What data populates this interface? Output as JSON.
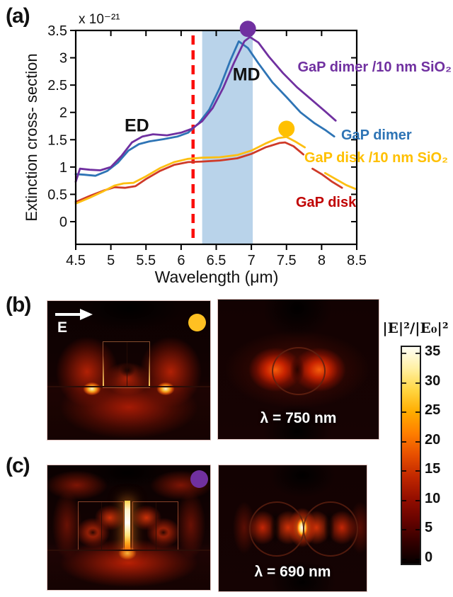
{
  "figure": {
    "panel_a_label": "(a)",
    "panel_b_label": "(b)",
    "panel_c_label": "(c)"
  },
  "chart_data": {
    "type": "line",
    "title": "",
    "xlabel": "Wavelength (μm)",
    "ylabel": "Extinction cross- section",
    "exponent_label": "x 10⁻²¹",
    "xlim": [
      4.5,
      8.5
    ],
    "ylim": [
      -0.42,
      3.5
    ],
    "xticks": [
      "4.5",
      "5",
      "5.5",
      "6",
      "6.5",
      "7",
      "7.5",
      "8",
      "8.5"
    ],
    "yticks": [
      "0",
      "0.5",
      "1",
      "1.5",
      "2",
      "2.5",
      "3",
      "3.5"
    ],
    "grid": false,
    "band": {
      "x0": 6.3,
      "x1": 7.02,
      "color": "#b9d3ea"
    },
    "vline": {
      "x": 6.17,
      "color": "#fb0f0c",
      "style": "dashed"
    },
    "annotations": [
      {
        "text": "ED",
        "x": 5.37,
        "y": 1.77
      },
      {
        "text": "MD",
        "x": 6.93,
        "y": 2.7
      }
    ],
    "markers": [
      {
        "x": 6.95,
        "y": 3.53,
        "color": "#7030a0"
      },
      {
        "x": 7.5,
        "y": 1.7,
        "color": "#ffc000"
      }
    ],
    "series": [
      {
        "name": "GaP dimer /10 nm SiO₂",
        "color": "#7030a0",
        "label_color": "#7030a0",
        "segments": [
          [
            [
              4.5,
              0.73
            ],
            [
              4.56,
              0.97
            ],
            [
              4.7,
              0.95
            ],
            [
              4.85,
              0.94
            ],
            [
              5.0,
              1.0
            ],
            [
              5.15,
              1.2
            ],
            [
              5.3,
              1.45
            ],
            [
              5.45,
              1.56
            ],
            [
              5.6,
              1.6
            ],
            [
              5.8,
              1.58
            ],
            [
              6.0,
              1.63
            ],
            [
              6.15,
              1.7
            ],
            [
              6.3,
              1.84
            ],
            [
              6.45,
              2.08
            ],
            [
              6.6,
              2.45
            ],
            [
              6.75,
              2.9
            ],
            [
              6.9,
              3.3
            ],
            [
              6.98,
              3.38
            ],
            [
              7.1,
              3.28
            ],
            [
              7.25,
              3.02
            ],
            [
              7.45,
              2.72
            ],
            [
              7.65,
              2.46
            ],
            [
              7.85,
              2.24
            ],
            [
              8.05,
              2.02
            ],
            [
              8.2,
              1.85
            ]
          ]
        ]
      },
      {
        "name": "GaP dimer",
        "color": "#2e74b5",
        "label_color": "#2e74b5",
        "segments": [
          [
            [
              4.5,
              0.87
            ],
            [
              4.62,
              0.86
            ],
            [
              4.78,
              0.84
            ],
            [
              4.95,
              0.93
            ],
            [
              5.1,
              1.08
            ],
            [
              5.25,
              1.3
            ],
            [
              5.4,
              1.42
            ],
            [
              5.55,
              1.47
            ],
            [
              5.75,
              1.51
            ],
            [
              5.95,
              1.56
            ],
            [
              6.1,
              1.63
            ],
            [
              6.25,
              1.8
            ],
            [
              6.4,
              2.05
            ],
            [
              6.55,
              2.45
            ],
            [
              6.7,
              2.95
            ],
            [
              6.82,
              3.3
            ],
            [
              6.95,
              3.18
            ],
            [
              7.1,
              2.9
            ],
            [
              7.3,
              2.55
            ],
            [
              7.5,
              2.28
            ],
            [
              7.7,
              2.0
            ],
            [
              7.9,
              1.8
            ],
            [
              8.05,
              1.68
            ],
            [
              8.18,
              1.56
            ]
          ]
        ]
      },
      {
        "name": "GaP disk /10 nm SiO₂",
        "color": "#fdbf12",
        "label_color": "#ffc000",
        "segments": [
          [
            [
              4.5,
              0.33
            ],
            [
              4.7,
              0.44
            ],
            [
              4.9,
              0.56
            ],
            [
              5.05,
              0.66
            ],
            [
              5.18,
              0.7
            ],
            [
              5.32,
              0.71
            ],
            [
              5.5,
              0.83
            ],
            [
              5.7,
              0.98
            ],
            [
              5.9,
              1.09
            ],
            [
              6.1,
              1.15
            ],
            [
              6.3,
              1.17
            ],
            [
              6.55,
              1.18
            ],
            [
              6.8,
              1.22
            ],
            [
              7.0,
              1.3
            ],
            [
              7.2,
              1.43
            ],
            [
              7.38,
              1.53
            ],
            [
              7.5,
              1.55
            ],
            [
              7.62,
              1.47
            ],
            [
              7.76,
              1.36
            ]
          ],
          [
            [
              8.05,
              0.89
            ],
            [
              8.2,
              0.78
            ],
            [
              8.35,
              0.67
            ],
            [
              8.48,
              0.6
            ]
          ]
        ]
      },
      {
        "name": "GaP disk",
        "color": "#cf3a28",
        "label_color": "#c00000",
        "segments": [
          [
            [
              4.5,
              0.36
            ],
            [
              4.7,
              0.47
            ],
            [
              4.9,
              0.57
            ],
            [
              5.05,
              0.63
            ],
            [
              5.2,
              0.62
            ],
            [
              5.35,
              0.65
            ],
            [
              5.5,
              0.78
            ],
            [
              5.7,
              0.93
            ],
            [
              5.9,
              1.04
            ],
            [
              6.1,
              1.09
            ],
            [
              6.3,
              1.1
            ],
            [
              6.55,
              1.12
            ],
            [
              6.8,
              1.16
            ],
            [
              7.0,
              1.24
            ],
            [
              7.2,
              1.36
            ],
            [
              7.4,
              1.44
            ],
            [
              7.48,
              1.45
            ],
            [
              7.6,
              1.38
            ],
            [
              7.74,
              1.23
            ]
          ],
          [
            [
              7.87,
              0.97
            ],
            [
              8.0,
              0.87
            ],
            [
              8.15,
              0.73
            ],
            [
              8.29,
              0.62
            ]
          ]
        ]
      }
    ],
    "legend_position": "right-inside"
  },
  "panel_b": {
    "e_field_label": "E",
    "marker_color": "#ffc022",
    "caption": "λ = 750 nm"
  },
  "panel_c": {
    "marker_color": "#7030a0",
    "caption": "λ = 690 nm"
  },
  "colorbar": {
    "title": "|E|²/|E₀|²",
    "ticks": [
      "35",
      "30",
      "25",
      "20",
      "15",
      "10",
      "5",
      "0"
    ],
    "tick_values": [
      35,
      30,
      25,
      20,
      15,
      10,
      5,
      0
    ],
    "gradient_bottom_to_top": [
      "#050000",
      "#330000",
      "#670300",
      "#940e00",
      "#c02700",
      "#e74e00",
      "#ff7e00",
      "#ffac00",
      "#ffd540",
      "#fff0a2",
      "#fffef5"
    ]
  }
}
